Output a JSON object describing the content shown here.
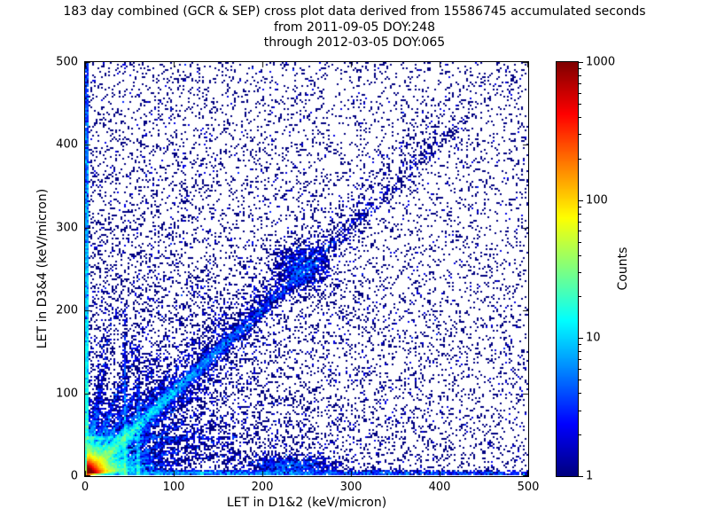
{
  "title": {
    "line1": "183 day combined (GCR & SEP) cross plot data derived from 15586745 accumulated seconds",
    "line2": "from 2011-09-05 DOY:248",
    "line3": "through 2012-03-05 DOY:065"
  },
  "chart_data": {
    "type": "scatter",
    "title": "183 day combined (GCR & SEP) cross plot data derived from 15586745 accumulated seconds",
    "subtitle": [
      "from 2011-09-05 DOY:248",
      "through 2012-03-05 DOY:065"
    ],
    "xlabel": "LET in D1&2 (keV/micron)",
    "ylabel": "LET in D3&4 (keV/micron)",
    "xlim": [
      0,
      500
    ],
    "ylim": [
      0,
      500
    ],
    "xticks": [
      0,
      100,
      200,
      300,
      400,
      500
    ],
    "yticks": [
      0,
      100,
      200,
      300,
      400,
      500
    ],
    "grid": false,
    "marker_px": 2,
    "seed": 42,
    "colorbar": {
      "label": "Counts",
      "scale": "log",
      "range": [
        1,
        1000
      ],
      "ticks": [
        1,
        10,
        100,
        1000
      ],
      "colormap": "jet",
      "low_color": "#00007f",
      "high_color": "#7f0000"
    },
    "features": [
      {
        "name": "origin-hot-core",
        "type": "exp2d",
        "x0": 2,
        "y0": 2,
        "sx": 5,
        "sy": 5,
        "n": 26000
      },
      {
        "name": "origin-halo",
        "type": "exp2d",
        "x0": 4,
        "y0": 4,
        "sx": 16,
        "sy": 14,
        "n": 9000
      },
      {
        "name": "origin-fan-rays",
        "type": "rays",
        "cx": 2,
        "cy": 2,
        "angles": [
          8,
          15,
          22,
          30,
          38,
          45,
          52,
          60,
          70,
          82
        ],
        "spread": 1.5,
        "len": 70,
        "n": 7000
      },
      {
        "name": "diagonal-correlation-band",
        "type": "diag",
        "slope": 1.0,
        "width": 6,
        "scale": 90,
        "n": 7000
      },
      {
        "name": "diagonal-band-wide",
        "type": "diag",
        "slope": 1.05,
        "width": 22,
        "scale": 150,
        "n": 2500
      },
      {
        "name": "diagonal-blob-245",
        "type": "gauss2d",
        "x0": 245,
        "y0": 252,
        "sx": 16,
        "sy": 14,
        "n": 900
      },
      {
        "name": "left-edge-band",
        "type": "vband",
        "x0": 0,
        "w": 4,
        "yscale": 260,
        "n": 5000
      },
      {
        "name": "bottom-edge-band",
        "type": "hband",
        "y0": 0,
        "h": 5,
        "xscale": 400,
        "n": 4000
      },
      {
        "name": "bottom-mid-blob-230",
        "type": "gauss2d",
        "x0": 232,
        "y0": 12,
        "sx": 26,
        "sy": 6,
        "n": 900
      },
      {
        "name": "vertical-streak-45",
        "type": "vline",
        "x0": 45,
        "w": 3,
        "yscale": 70,
        "ymax": 200,
        "n": 800
      },
      {
        "name": "vertical-streak-60",
        "type": "vline",
        "x0": 60,
        "w": 2.5,
        "yscale": 55,
        "ymax": 160,
        "n": 450
      },
      {
        "name": "horizontal-streak-45",
        "type": "hline",
        "y0": 45,
        "h": 3,
        "xscale": 60,
        "xmax": 180,
        "n": 500
      },
      {
        "name": "sparse-uniform-background",
        "type": "uniform",
        "n": 6500
      },
      {
        "name": "low-let-haze",
        "type": "exp2d",
        "x0": 0,
        "y0": 0,
        "sx": 260,
        "sy": 260,
        "n": 6000
      }
    ]
  }
}
